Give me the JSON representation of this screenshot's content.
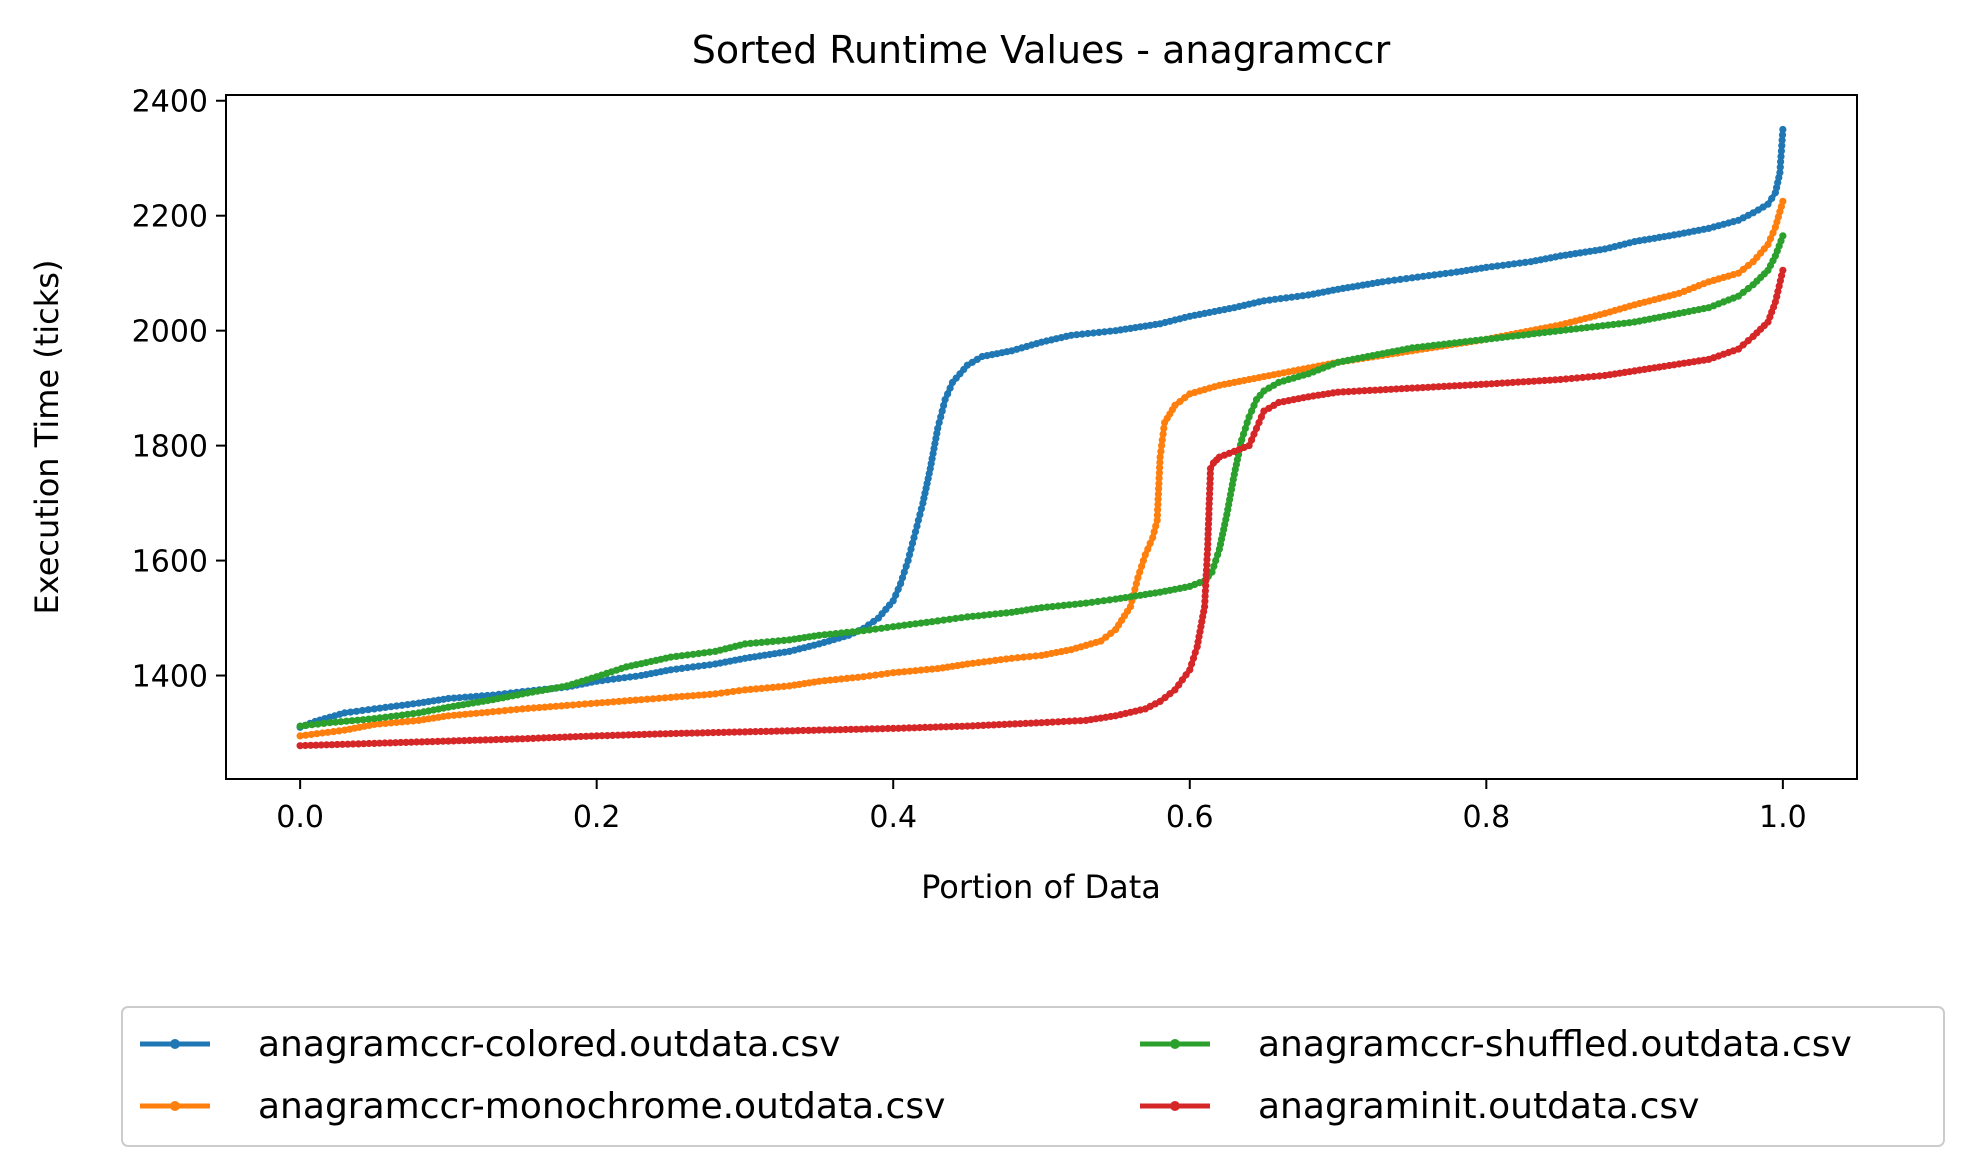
{
  "chart_data": {
    "type": "line",
    "title": "Sorted Runtime Values - anagramccr",
    "xlabel": "Portion of Data",
    "ylabel": "Execution Time (ticks)",
    "xlim": [
      -0.05,
      1.05
    ],
    "ylim": [
      1220,
      2410
    ],
    "xticks": [
      0.0,
      0.2,
      0.4,
      0.6,
      0.8,
      1.0
    ],
    "xtick_labels": [
      "0.0",
      "0.2",
      "0.4",
      "0.6",
      "0.8",
      "1.0"
    ],
    "yticks": [
      1400,
      1600,
      1800,
      2000,
      2200,
      2400
    ],
    "ytick_labels": [
      "1400",
      "1600",
      "1800",
      "2000",
      "2200",
      "2400"
    ],
    "grid": false,
    "legend": {
      "placement": "below",
      "columns": 2
    },
    "series": [
      {
        "name": "anagramccr-colored.outdata.csv",
        "color": "#1f77b4",
        "x": [
          0.0,
          0.01,
          0.03,
          0.05,
          0.08,
          0.1,
          0.13,
          0.15,
          0.18,
          0.2,
          0.23,
          0.25,
          0.28,
          0.3,
          0.33,
          0.35,
          0.37,
          0.38,
          0.39,
          0.4,
          0.405,
          0.41,
          0.415,
          0.42,
          0.425,
          0.43,
          0.435,
          0.44,
          0.45,
          0.46,
          0.48,
          0.5,
          0.52,
          0.55,
          0.58,
          0.6,
          0.63,
          0.65,
          0.68,
          0.7,
          0.73,
          0.75,
          0.78,
          0.8,
          0.83,
          0.85,
          0.88,
          0.9,
          0.93,
          0.95,
          0.97,
          0.98,
          0.99,
          0.995,
          0.998,
          1.0
        ],
        "y": [
          1310,
          1320,
          1335,
          1342,
          1352,
          1360,
          1366,
          1372,
          1380,
          1390,
          1400,
          1410,
          1420,
          1430,
          1442,
          1455,
          1470,
          1482,
          1500,
          1530,
          1560,
          1600,
          1650,
          1700,
          1760,
          1830,
          1880,
          1910,
          1940,
          1955,
          1965,
          1980,
          1992,
          2000,
          2012,
          2025,
          2040,
          2052,
          2062,
          2072,
          2085,
          2092,
          2102,
          2110,
          2120,
          2130,
          2142,
          2155,
          2168,
          2178,
          2192,
          2205,
          2220,
          2240,
          2275,
          2350
        ]
      },
      {
        "name": "anagramccr-monochrome.outdata.csv",
        "color": "#ff7f0e",
        "x": [
          0.0,
          0.03,
          0.05,
          0.08,
          0.1,
          0.13,
          0.15,
          0.18,
          0.2,
          0.23,
          0.25,
          0.28,
          0.3,
          0.33,
          0.35,
          0.38,
          0.4,
          0.43,
          0.45,
          0.48,
          0.5,
          0.52,
          0.54,
          0.55,
          0.56,
          0.565,
          0.57,
          0.575,
          0.578,
          0.58,
          0.583,
          0.59,
          0.6,
          0.62,
          0.65,
          0.68,
          0.7,
          0.75,
          0.8,
          0.85,
          0.88,
          0.9,
          0.93,
          0.95,
          0.97,
          0.98,
          0.99,
          0.995,
          1.0
        ],
        "y": [
          1295,
          1305,
          1315,
          1322,
          1330,
          1337,
          1342,
          1348,
          1352,
          1358,
          1362,
          1368,
          1375,
          1382,
          1390,
          1398,
          1405,
          1412,
          1420,
          1430,
          1435,
          1445,
          1460,
          1480,
          1520,
          1570,
          1610,
          1640,
          1670,
          1780,
          1840,
          1870,
          1890,
          1905,
          1920,
          1935,
          1945,
          1965,
          1985,
          2010,
          2030,
          2045,
          2065,
          2085,
          2100,
          2120,
          2150,
          2180,
          2225
        ]
      },
      {
        "name": "anagramccr-shuffled.outdata.csv",
        "color": "#2ca02c",
        "x": [
          0.0,
          0.02,
          0.05,
          0.08,
          0.1,
          0.13,
          0.15,
          0.18,
          0.2,
          0.22,
          0.25,
          0.28,
          0.3,
          0.33,
          0.35,
          0.38,
          0.4,
          0.43,
          0.45,
          0.48,
          0.5,
          0.53,
          0.55,
          0.58,
          0.6,
          0.61,
          0.615,
          0.62,
          0.625,
          0.63,
          0.635,
          0.64,
          0.645,
          0.65,
          0.66,
          0.68,
          0.7,
          0.75,
          0.8,
          0.85,
          0.9,
          0.93,
          0.95,
          0.97,
          0.98,
          0.99,
          0.995,
          1.0
        ],
        "y": [
          1312,
          1318,
          1325,
          1335,
          1345,
          1358,
          1368,
          1382,
          1398,
          1415,
          1432,
          1442,
          1455,
          1462,
          1470,
          1478,
          1485,
          1495,
          1502,
          1510,
          1518,
          1526,
          1533,
          1545,
          1555,
          1565,
          1580,
          1620,
          1680,
          1750,
          1810,
          1850,
          1880,
          1895,
          1910,
          1925,
          1945,
          1970,
          1985,
          2000,
          2015,
          2030,
          2040,
          2060,
          2080,
          2105,
          2130,
          2165
        ]
      },
      {
        "name": "anagraminit.outdata.csv",
        "color": "#d62728",
        "x": [
          0.0,
          0.05,
          0.1,
          0.15,
          0.2,
          0.25,
          0.3,
          0.35,
          0.4,
          0.45,
          0.5,
          0.53,
          0.55,
          0.57,
          0.58,
          0.59,
          0.6,
          0.605,
          0.61,
          0.612,
          0.614,
          0.616,
          0.618,
          0.62,
          0.63,
          0.64,
          0.645,
          0.65,
          0.66,
          0.68,
          0.7,
          0.75,
          0.8,
          0.85,
          0.88,
          0.9,
          0.92,
          0.95,
          0.97,
          0.98,
          0.99,
          0.995,
          1.0
        ],
        "y": [
          1278,
          1282,
          1286,
          1290,
          1295,
          1299,
          1302,
          1305,
          1308,
          1312,
          1318,
          1322,
          1330,
          1342,
          1355,
          1375,
          1410,
          1450,
          1520,
          1620,
          1760,
          1770,
          1775,
          1780,
          1790,
          1800,
          1830,
          1860,
          1875,
          1885,
          1893,
          1900,
          1907,
          1915,
          1922,
          1930,
          1938,
          1950,
          1968,
          1990,
          2015,
          2050,
          2105
        ]
      }
    ]
  }
}
